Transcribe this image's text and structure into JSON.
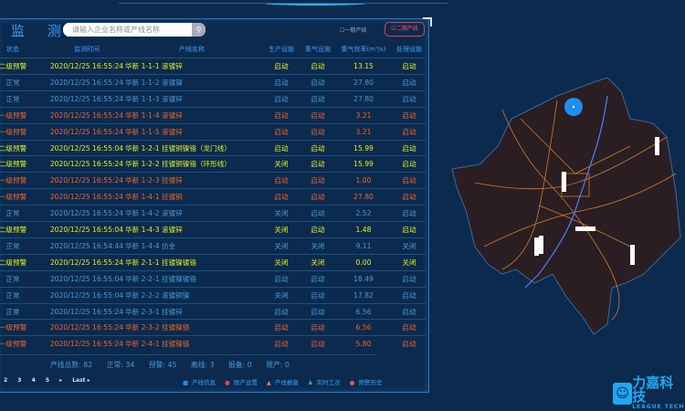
{
  "header": {
    "title": "监 测",
    "search_placeholder": "请输入企业名称或产线名称",
    "search_icon": "magnifier-icon",
    "line_toggle_1": "一期产线",
    "line_toggle_2": "二期产线"
  },
  "columns": [
    "状态",
    "监测时间",
    "产线名称",
    "生产设施",
    "集气设施",
    "集气效率(m³/s)",
    "处理设施"
  ],
  "rows": [
    {
      "status": "二级预警",
      "level": "l2",
      "time": "2020/12/25 16:55:24",
      "name": "华新 1-1-1 滚镀锌",
      "prod": "启动",
      "gas": "启动",
      "eff": "13.15",
      "treat": "启动"
    },
    {
      "status": "正常",
      "level": "normal",
      "time": "2020/12/25 16:55:24",
      "name": "华新 1-1-2 滚镀镍",
      "prod": "启动",
      "gas": "启动",
      "eff": "27.80",
      "treat": "启动"
    },
    {
      "status": "正常",
      "level": "normal",
      "time": "2020/12/25 16:55:24",
      "name": "华新 1-1-3 滚镀锌",
      "prod": "启动",
      "gas": "启动",
      "eff": "27.80",
      "treat": "启动"
    },
    {
      "status": "一级预警",
      "level": "l1",
      "time": "2020/12/25 16:55:24",
      "name": "华新 1-1-4 滚镀锌",
      "prod": "启动",
      "gas": "启动",
      "eff": "3.21",
      "treat": "启动"
    },
    {
      "status": "一级预警",
      "level": "l1",
      "time": "2020/12/25 16:55:24",
      "name": "华新 1-1-5 滚镀锌",
      "prod": "启动",
      "gas": "启动",
      "eff": "3.21",
      "treat": "启动"
    },
    {
      "status": "二级预警",
      "level": "l2",
      "time": "2020/12/25 16:55:04",
      "name": "华新 1-2-1 挂镀铜镍铬（龙门线）",
      "prod": "启动",
      "gas": "启动",
      "eff": "15.99",
      "treat": "启动"
    },
    {
      "status": "二级预警",
      "level": "l2",
      "time": "2020/12/25 16:55:24",
      "name": "华新 1-2-2 挂镀铜镍铬（环形线）",
      "prod": "关闭",
      "gas": "启动",
      "eff": "15.99",
      "treat": "启动"
    },
    {
      "status": "一级预警",
      "level": "l1",
      "time": "2020/12/25 16:55:24",
      "name": "华新 1-2-3 挂镀锌",
      "prod": "启动",
      "gas": "启动",
      "eff": "1.00",
      "treat": "启动"
    },
    {
      "status": "一级预警",
      "level": "l1",
      "time": "2020/12/25 16:55:24",
      "name": "华新 1-4-1 挂镀铜",
      "prod": "启动",
      "gas": "启动",
      "eff": "27.80",
      "treat": "启动"
    },
    {
      "status": "正常",
      "level": "normal",
      "time": "2020/12/25 16:55:24",
      "name": "华新 1-4-2 滚镀锌",
      "prod": "关闭",
      "gas": "启动",
      "eff": "2.52",
      "treat": "启动"
    },
    {
      "status": "二级预警",
      "level": "l2",
      "time": "2020/12/25 16:55:04",
      "name": "华新 1-4-3 滚镀锌",
      "prod": "关闭",
      "gas": "启动",
      "eff": "1.48",
      "treat": "启动"
    },
    {
      "status": "正常",
      "level": "normal",
      "time": "2020/12/25 16:54:44",
      "name": "华新 1-4-4 仿金",
      "prod": "关闭",
      "gas": "关闭",
      "eff": "9.11",
      "treat": "关闭"
    },
    {
      "status": "二级预警",
      "level": "l2",
      "time": "2020/12/25 16:55:24",
      "name": "华新 2-1-1 挂镀镍镀铬",
      "prod": "关闭",
      "gas": "关闭",
      "eff": "0.00",
      "treat": "关闭"
    },
    {
      "status": "正常",
      "level": "normal",
      "time": "2020/12/25 16:55:04",
      "name": "华新 2-2-1 挂镀镍镀铬",
      "prod": "启动",
      "gas": "启动",
      "eff": "18.49",
      "treat": "启动"
    },
    {
      "status": "正常",
      "level": "normal",
      "time": "2020/12/25 16:55:04",
      "name": "华新 2-2-2 滚镀铜镍",
      "prod": "关闭",
      "gas": "启动",
      "eff": "17.82",
      "treat": "启动"
    },
    {
      "status": "正常",
      "level": "normal",
      "time": "2020/12/25 16:55:24",
      "name": "华新 2-3-1 挂镀锌",
      "prod": "启动",
      "gas": "启动",
      "eff": "6.56",
      "treat": "启动"
    },
    {
      "status": "一级预警",
      "level": "l1",
      "time": "2020/12/25 16:55:24",
      "name": "华新 2-3-2 挂镀镍铬",
      "prod": "启动",
      "gas": "启动",
      "eff": "6.56",
      "treat": "启动"
    },
    {
      "status": "一级预警",
      "level": "l1",
      "time": "2020/12/25 16:55:24",
      "name": "华新 2-4-1 挂镀镍铬",
      "prod": "启动",
      "gas": "启动",
      "eff": "5.80",
      "treat": "启动"
    }
  ],
  "summary": {
    "total": "产线总数: 82",
    "normal": "正常: 34",
    "warning": "预警: 45",
    "offline": "离线: 3",
    "standby": "报备: 0",
    "stopped": "限产: 0"
  },
  "pagination": {
    "pages": [
      "2",
      "3",
      "4",
      "5"
    ],
    "next": "▸",
    "last": "Last ▸"
  },
  "legend": [
    {
      "icon": "square-icon",
      "glyph": "■",
      "color": "#2a8ae0",
      "label": "产线信息"
    },
    {
      "icon": "circle-icon",
      "glyph": "●",
      "color": "#f04050",
      "label": "限产设置"
    },
    {
      "icon": "triangle-icon",
      "glyph": "▲",
      "color": "#d08060",
      "label": "产线报备"
    },
    {
      "icon": "person-icon",
      "glyph": "♟",
      "color": "#30a0e0",
      "label": "实时工况"
    },
    {
      "icon": "alarm-icon",
      "glyph": "●",
      "color": "#f05060",
      "label": "预警历史"
    }
  ],
  "logo": {
    "name": "力嘉科技",
    "sub": "LEAGUE TECH"
  },
  "colors": {
    "normal": "#4a9ad8",
    "level2": "#e6f01e",
    "level1": "#f06428",
    "background": "#0b2a4e",
    "map_fill": "#2a1e22",
    "road": "#d07a30"
  }
}
